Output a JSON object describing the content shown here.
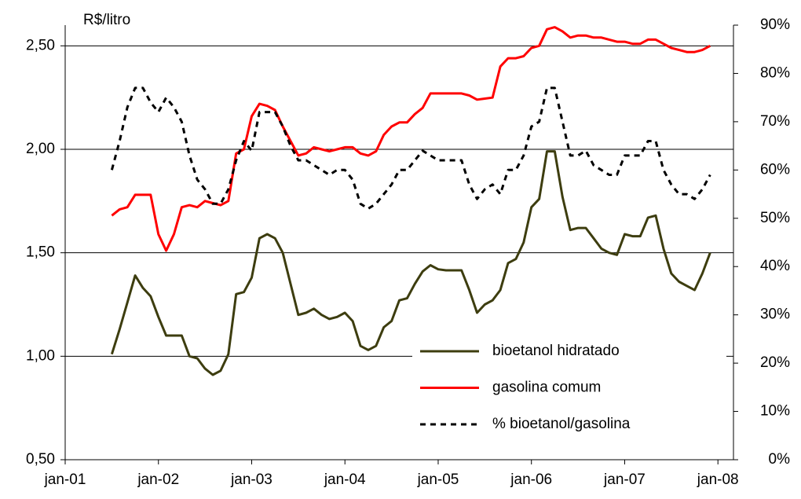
{
  "chart_data": {
    "type": "line",
    "ylabel": "R$/litro",
    "x": [
      "2001-07",
      "2001-08",
      "2001-09",
      "2001-10",
      "2001-11",
      "2001-12",
      "2002-01",
      "2002-02",
      "2002-03",
      "2002-04",
      "2002-05",
      "2002-06",
      "2002-07",
      "2002-08",
      "2002-09",
      "2002-10",
      "2002-11",
      "2002-12",
      "2003-01",
      "2003-02",
      "2003-03",
      "2003-04",
      "2003-05",
      "2003-06",
      "2003-07",
      "2003-08",
      "2003-09",
      "2003-10",
      "2003-11",
      "2003-12",
      "2004-01",
      "2004-02",
      "2004-03",
      "2004-04",
      "2004-05",
      "2004-06",
      "2004-07",
      "2004-08",
      "2004-09",
      "2004-10",
      "2004-11",
      "2004-12",
      "2005-01",
      "2005-02",
      "2005-03",
      "2005-04",
      "2005-05",
      "2005-06",
      "2005-07",
      "2005-08",
      "2005-09",
      "2005-10",
      "2005-11",
      "2005-12",
      "2006-01",
      "2006-02",
      "2006-03",
      "2006-04",
      "2006-05",
      "2006-06",
      "2006-07",
      "2006-08",
      "2006-09",
      "2006-10",
      "2006-11",
      "2006-12",
      "2007-01",
      "2007-02",
      "2007-03",
      "2007-04",
      "2007-05",
      "2007-06",
      "2007-07",
      "2007-08",
      "2007-09",
      "2007-10",
      "2007-11",
      "2007-12"
    ],
    "series": [
      {
        "name": "bioetanol hidratado",
        "color": "#3d3d0f",
        "dashed": false,
        "values": [
          1.01,
          1.13,
          1.26,
          1.39,
          1.33,
          1.29,
          1.19,
          1.1,
          1.1,
          1.1,
          1.0,
          0.99,
          0.94,
          0.91,
          0.93,
          1.01,
          1.3,
          1.31,
          1.38,
          1.57,
          1.59,
          1.57,
          1.5,
          1.35,
          1.2,
          1.21,
          1.23,
          1.2,
          1.18,
          1.19,
          1.21,
          1.17,
          1.05,
          1.03,
          1.05,
          1.14,
          1.17,
          1.27,
          1.28,
          1.35,
          1.41,
          1.44,
          1.42,
          1.415,
          1.415,
          1.415,
          1.32,
          1.21,
          1.25,
          1.27,
          1.32,
          1.45,
          1.47,
          1.55,
          1.72,
          1.76,
          1.99,
          1.99,
          1.77,
          1.61,
          1.62,
          1.62,
          1.57,
          1.52,
          1.5,
          1.49,
          1.59,
          1.58,
          1.58,
          1.67,
          1.68,
          1.52,
          1.4,
          1.36,
          1.34,
          1.32,
          1.4,
          1.5
        ]
      },
      {
        "name": "gasolina comum",
        "color": "#ff0000",
        "dashed": false,
        "values": [
          1.68,
          1.71,
          1.72,
          1.78,
          1.78,
          1.78,
          1.59,
          1.51,
          1.59,
          1.72,
          1.73,
          1.72,
          1.75,
          1.74,
          1.73,
          1.75,
          1.98,
          2.0,
          2.16,
          2.22,
          2.21,
          2.19,
          2.11,
          2.04,
          1.97,
          1.98,
          2.01,
          2.0,
          1.99,
          2.0,
          2.01,
          2.01,
          1.98,
          1.97,
          1.99,
          2.07,
          2.11,
          2.13,
          2.13,
          2.17,
          2.2,
          2.27,
          2.27,
          2.27,
          2.27,
          2.27,
          2.26,
          2.24,
          2.245,
          2.25,
          2.4,
          2.44,
          2.44,
          2.45,
          2.49,
          2.5,
          2.58,
          2.59,
          2.57,
          2.54,
          2.55,
          2.55,
          2.54,
          2.54,
          2.53,
          2.52,
          2.52,
          2.51,
          2.51,
          2.53,
          2.53,
          2.51,
          2.49,
          2.48,
          2.47,
          2.47,
          2.48,
          2.5
        ]
      },
      {
        "name": "% bioetanol/gasolina",
        "color": "#000000",
        "dashed": true,
        "axis": "y2",
        "values": [
          60,
          66,
          73,
          77,
          77,
          74,
          72,
          75,
          73,
          70,
          63,
          58,
          56,
          53,
          53,
          56,
          62,
          66,
          64,
          72,
          72,
          72,
          69,
          65,
          62,
          62,
          61,
          60,
          59,
          60,
          60,
          58,
          53,
          52,
          53,
          55,
          57,
          60,
          60,
          62,
          64,
          63,
          62,
          62,
          62,
          62,
          57,
          54,
          56,
          57,
          55,
          60,
          60,
          63,
          69,
          70,
          77,
          77,
          70,
          63,
          63,
          64,
          61,
          60,
          59,
          59,
          63,
          63,
          63,
          66,
          66,
          60,
          57,
          55,
          55,
          54,
          56,
          59
        ]
      }
    ],
    "xlim": [
      "2001-01",
      "2008-03"
    ],
    "xticks": [
      {
        "value": "2001-01",
        "label": "jan-01"
      },
      {
        "value": "2002-01",
        "label": "jan-02"
      },
      {
        "value": "2003-01",
        "label": "jan-03"
      },
      {
        "value": "2004-01",
        "label": "jan-04"
      },
      {
        "value": "2005-01",
        "label": "jan-05"
      },
      {
        "value": "2006-01",
        "label": "jan-06"
      },
      {
        "value": "2007-01",
        "label": "jan-07"
      },
      {
        "value": "2008-01",
        "label": "jan-08"
      }
    ],
    "ylim": [
      0.5,
      2.6
    ],
    "yticks": [
      {
        "value": 0.5,
        "label": "0,50"
      },
      {
        "value": 1.0,
        "label": "1,00"
      },
      {
        "value": 1.5,
        "label": "1,50"
      },
      {
        "value": 2.0,
        "label": "2,00"
      },
      {
        "value": 2.5,
        "label": "2,50"
      }
    ],
    "y2lim": [
      0,
      90
    ],
    "y2ticks": [
      {
        "value": 0,
        "label": "0%"
      },
      {
        "value": 10,
        "label": "10%"
      },
      {
        "value": 20,
        "label": "20%"
      },
      {
        "value": 30,
        "label": "30%"
      },
      {
        "value": 40,
        "label": "40%"
      },
      {
        "value": 50,
        "label": "50%"
      },
      {
        "value": 60,
        "label": "60%"
      },
      {
        "value": 70,
        "label": "70%"
      },
      {
        "value": 80,
        "label": "80%"
      },
      {
        "value": 90,
        "label": "90%"
      }
    ],
    "grid": true,
    "legend": "lower right"
  }
}
